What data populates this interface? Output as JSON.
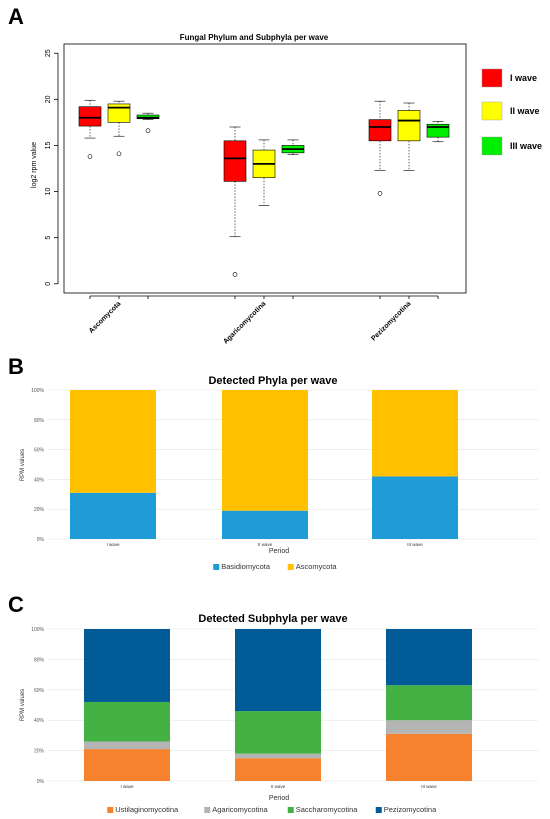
{
  "panels": {
    "a": "A",
    "b": "B",
    "c": "C"
  },
  "colors": {
    "wave1": "#ff0000",
    "wave2": "#ffff00",
    "wave3": "#00ee00",
    "basidiomycota": "#1f9bd7",
    "ascomycota": "#ffc000",
    "ustilaginomycotina": "#f7822e",
    "agaricomycotina": "#b4b4b4",
    "saccharomycotina": "#43b143",
    "pezizomycotina": "#005b96"
  },
  "chart_data": [
    {
      "type": "box",
      "title": "Fungal Phylum and Subphyla per wave",
      "xlabel": "",
      "ylabel": "log2 rpm value",
      "ylim": [
        -1,
        26
      ],
      "yticks": [
        "0",
        "5",
        "10",
        "15",
        "20",
        "25"
      ],
      "categories": [
        "Ascomycota",
        "Agaricomycotina",
        "Pezizomycotina"
      ],
      "legend_position": "right",
      "series": [
        {
          "name": "I wave",
          "color_key": "wave1",
          "boxes": [
            {
              "min": 15.8,
              "q1": 17.1,
              "median": 18.0,
              "q3": 19.2,
              "max": 19.9,
              "outliers": [
                13.8
              ]
            },
            {
              "min": 5.1,
              "q1": 11.1,
              "median": 13.6,
              "q3": 15.5,
              "max": 17.0,
              "outliers": [
                1.0
              ]
            },
            {
              "min": 12.3,
              "q1": 15.5,
              "median": 17.0,
              "q3": 17.8,
              "max": 19.8,
              "outliers": [
                9.8
              ]
            }
          ]
        },
        {
          "name": "II wave",
          "color_key": "wave2",
          "boxes": [
            {
              "min": 16.0,
              "q1": 17.5,
              "median": 19.1,
              "q3": 19.5,
              "max": 19.8,
              "outliers": [
                14.1
              ]
            },
            {
              "min": 8.5,
              "q1": 11.5,
              "median": 13.0,
              "q3": 14.5,
              "max": 15.6,
              "outliers": []
            },
            {
              "min": 12.3,
              "q1": 15.5,
              "median": 17.7,
              "q3": 18.8,
              "max": 19.6,
              "outliers": []
            }
          ]
        },
        {
          "name": "III wave",
          "color_key": "wave3",
          "boxes": [
            {
              "min": 17.8,
              "q1": 17.9,
              "median": 18.0,
              "q3": 18.3,
              "max": 18.5,
              "outliers": [
                16.6
              ]
            },
            {
              "min": 14.0,
              "q1": 14.2,
              "median": 14.6,
              "q3": 15.0,
              "max": 15.6,
              "outliers": []
            },
            {
              "min": 15.4,
              "q1": 15.9,
              "median": 17.0,
              "q3": 17.3,
              "max": 17.6,
              "outliers": []
            }
          ]
        }
      ]
    },
    {
      "type": "bar",
      "stacked": true,
      "title": "Detected Phyla per wave",
      "xlabel": "Period",
      "ylabel": "RPM values",
      "ylim": [
        0,
        100
      ],
      "yticks": [
        "0%",
        "20%",
        "40%",
        "60%",
        "80%",
        "100%"
      ],
      "categories": [
        "I wave",
        "II wave",
        "III wave"
      ],
      "legend_position": "bottom",
      "series": [
        {
          "name": "Basidiomycota",
          "color_key": "basidiomycota",
          "values": [
            31,
            19,
            42
          ]
        },
        {
          "name": "Ascomycota",
          "color_key": "ascomycota",
          "values": [
            69,
            81,
            58
          ]
        }
      ]
    },
    {
      "type": "bar",
      "stacked": true,
      "title": "Detected Subphyla per wave",
      "xlabel": "Period",
      "ylabel": "RPM values",
      "ylim": [
        0,
        100
      ],
      "yticks": [
        "0%",
        "20%",
        "40%",
        "60%",
        "80%",
        "100%"
      ],
      "categories": [
        "I wave",
        "II wave",
        "III wave"
      ],
      "legend_position": "bottom",
      "series": [
        {
          "name": "Ustilaginomycotina",
          "color_key": "ustilaginomycotina",
          "values": [
            21,
            15,
            31
          ]
        },
        {
          "name": "Agaricomycotina",
          "color_key": "agaricomycotina",
          "values": [
            5,
            3,
            9
          ]
        },
        {
          "name": "Saccharomycotina",
          "color_key": "saccharomycotina",
          "values": [
            26,
            28,
            23
          ]
        },
        {
          "name": "Pezizomycotina",
          "color_key": "pezizomycotina",
          "values": [
            48,
            54,
            37
          ]
        }
      ]
    }
  ]
}
